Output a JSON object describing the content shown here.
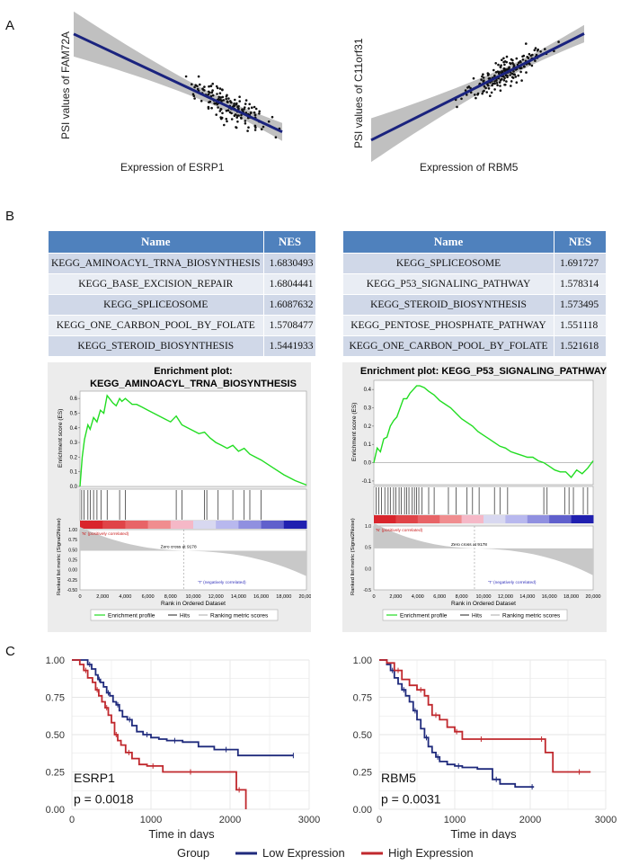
{
  "panel_labels": {
    "a": "A",
    "b": "B",
    "c": "C"
  },
  "scatter_left": {
    "ylabel": "PSI values of FAM72A",
    "xlabel": "Expression of ESRP1",
    "trend": "negative"
  },
  "scatter_right": {
    "ylabel": "PSI values of C11orf31",
    "xlabel": "Expression of RBM5",
    "trend": "positive"
  },
  "table_left": {
    "headers": [
      "Name",
      "NES"
    ],
    "rows": [
      {
        "name": "KEGG_AMINOACYL_TRNA_BIOSYNTHESIS",
        "nes": "1.6830493"
      },
      {
        "name": "KEGG_BASE_EXCISION_REPAIR",
        "nes": "1.6804441"
      },
      {
        "name": "KEGG_SPLICEOSOME",
        "nes": "1.6087632"
      },
      {
        "name": "KEGG_ONE_CARBON_POOL_BY_FOLATE",
        "nes": "1.5708477"
      },
      {
        "name": "KEGG_STEROID_BIOSYNTHESIS",
        "nes": "1.5441933"
      }
    ]
  },
  "table_right": {
    "headers": [
      "Name",
      "NES"
    ],
    "rows": [
      {
        "name": "KEGG_SPLICEOSOME",
        "nes": "1.691727"
      },
      {
        "name": "KEGG_P53_SIGNALING_PATHWAY",
        "nes": "1.578314"
      },
      {
        "name": "KEGG_STEROID_BIOSYNTHESIS",
        "nes": "1.573495"
      },
      {
        "name": "KEGG_PENTOSE_PHOSPHATE_PATHWAY",
        "nes": "1.551118"
      },
      {
        "name": "KEGG_ONE_CARBON_POOL_BY_FOLATE",
        "nes": "1.521618"
      }
    ]
  },
  "gsea_left": {
    "title_line1": "Enrichment plot:",
    "title_line2": "KEGG_AMINOACYL_TRNA_BIOSYNTHESIS",
    "es_ylabel": "Enrichment score (ES)",
    "rank_ylabel": "Ranked list metric (Signal2Noise)",
    "xlabel": "Rank in Ordered Dataset",
    "pos_label": "'N' (positively correlated)",
    "neg_label": "'T' (negatively correlated)",
    "zero_cross": "Zero cross at 9178",
    "legend": [
      "Enrichment profile",
      "Hits",
      "Ranking metric scores"
    ],
    "es_ticks": [
      "0.6",
      "0.5",
      "0.4",
      "0.3",
      "0.2",
      "0.1",
      "0.0"
    ],
    "rank_ticks": [
      "1.00",
      "0.75",
      "0.50",
      "0.25",
      "0.00",
      "-0.25",
      "-0.50"
    ],
    "x_ticks": [
      "0",
      "2,000",
      "4,000",
      "6,000",
      "8,000",
      "10,000",
      "12,000",
      "14,000",
      "16,000",
      "18,000",
      "20,000"
    ]
  },
  "gsea_right": {
    "title": "Enrichment plot: KEGG_P53_SIGNALING_PATHWAY",
    "es_ylabel": "Enrichment score (ES)",
    "rank_ylabel": "Ranked list metric (Signal2Noise)",
    "xlabel": "Rank in Ordered Dataset",
    "pos_label": "'N' (positively correlated)",
    "neg_label": "'T' (negatively correlated)",
    "zero_cross": "Zero cross at 9178",
    "legend": [
      "Enrichment profile",
      "Hits",
      "Ranking metric scores"
    ],
    "es_ticks": [
      "0.4",
      "0.3",
      "0.2",
      "0.1",
      "0.0",
      "-0.1"
    ],
    "rank_ticks": [
      "1.0",
      "0.5",
      "0.0",
      "-0.5"
    ],
    "x_ticks": [
      "0",
      "2,000",
      "4,000",
      "6,000",
      "8,000",
      "10,000",
      "12,000",
      "14,000",
      "16,000",
      "18,000",
      "20,000"
    ]
  },
  "chart_data": [
    {
      "type": "scatter",
      "title": "",
      "xlabel": "Expression of ESRP1",
      "ylabel": "PSI values of FAM72A",
      "note": "Negative linear fit with confidence band; axis ticks not shown",
      "fit": {
        "x": [
          0,
          1
        ],
        "y": [
          0.88,
          0.22
        ]
      }
    },
    {
      "type": "scatter",
      "title": "",
      "xlabel": "Expression of RBM5",
      "ylabel": "PSI values of C11orf31",
      "note": "Positive linear fit with confidence band; axis ticks not shown",
      "fit": {
        "x": [
          0,
          1
        ],
        "y": [
          0.12,
          0.86
        ]
      }
    },
    {
      "type": "line",
      "title": "Enrichment plot: KEGG_AMINOACYL_TRNA_BIOSYNTHESIS",
      "xlabel": "Rank in Ordered Dataset",
      "ylabel": "Enrichment score (ES)",
      "xlim": [
        0,
        20000
      ],
      "ylim": [
        0,
        0.65
      ],
      "x": [
        0,
        200,
        400,
        700,
        900,
        1200,
        1500,
        1800,
        2100,
        2400,
        2600,
        2900,
        3200,
        3500,
        3700,
        4000,
        4300,
        4600,
        5000,
        5500,
        6000,
        6500,
        7000,
        7500,
        8000,
        8500,
        9000,
        9500,
        10000,
        10500,
        11000,
        11500,
        12000,
        12500,
        13000,
        13500,
        14000,
        14500,
        15000,
        15500,
        16000,
        17000,
        18000,
        19000,
        20000
      ],
      "y": [
        0.0,
        0.2,
        0.32,
        0.42,
        0.39,
        0.47,
        0.44,
        0.52,
        0.5,
        0.62,
        0.6,
        0.57,
        0.55,
        0.6,
        0.58,
        0.6,
        0.58,
        0.56,
        0.56,
        0.54,
        0.52,
        0.5,
        0.48,
        0.46,
        0.44,
        0.48,
        0.42,
        0.4,
        0.38,
        0.36,
        0.37,
        0.33,
        0.3,
        0.28,
        0.26,
        0.28,
        0.24,
        0.26,
        0.22,
        0.2,
        0.18,
        0.13,
        0.08,
        0.04,
        0.01
      ],
      "hits": [
        150,
        350,
        700,
        900,
        1200,
        1500,
        1850,
        2400,
        3500,
        4000,
        8500,
        9000,
        11000,
        11200,
        12200,
        13500,
        14500,
        15000,
        16000
      ],
      "zero_cross": 9178
    },
    {
      "type": "line",
      "title": "Enrichment plot: KEGG_P53_SIGNALING_PATHWAY",
      "xlabel": "Rank in Ordered Dataset",
      "ylabel": "Enrichment score (ES)",
      "xlim": [
        0,
        20000
      ],
      "ylim": [
        -0.12,
        0.45
      ],
      "x": [
        0,
        300,
        600,
        900,
        1200,
        1500,
        1800,
        2100,
        2400,
        2700,
        3000,
        3300,
        3600,
        3900,
        4200,
        4600,
        5000,
        5500,
        6000,
        6500,
        7000,
        7500,
        8000,
        8500,
        9000,
        9500,
        10000,
        10500,
        11000,
        11500,
        12000,
        12500,
        13000,
        13500,
        14000,
        14500,
        15000,
        15500,
        16000,
        16500,
        17000,
        17500,
        18000,
        18500,
        19000,
        19500,
        20000
      ],
      "y": [
        0.0,
        0.08,
        0.06,
        0.13,
        0.14,
        0.2,
        0.23,
        0.25,
        0.3,
        0.35,
        0.35,
        0.38,
        0.4,
        0.42,
        0.42,
        0.41,
        0.39,
        0.37,
        0.34,
        0.32,
        0.3,
        0.27,
        0.24,
        0.22,
        0.2,
        0.17,
        0.15,
        0.13,
        0.11,
        0.09,
        0.08,
        0.06,
        0.05,
        0.04,
        0.03,
        0.03,
        0.01,
        0.0,
        -0.02,
        -0.04,
        -0.05,
        -0.05,
        -0.08,
        -0.04,
        -0.06,
        -0.03,
        0.01
      ],
      "hits": [
        200,
        450,
        700,
        1000,
        1300,
        1500,
        1800,
        2000,
        2300,
        2500,
        2800,
        3000,
        3200,
        3500,
        3700,
        3900,
        4100,
        4400,
        5000,
        5500,
        6800,
        7500,
        8500,
        9000,
        9600,
        11000,
        11500,
        12200,
        15500,
        15800,
        17400,
        17800,
        18200,
        19100,
        19500
      ],
      "zero_cross": 9178
    },
    {
      "type": "line",
      "title": "ESRP1",
      "annotation": "p = 0.0018",
      "xlabel": "Time in days",
      "ylabel": "",
      "xlim": [
        0,
        3000
      ],
      "ylim": [
        0,
        1
      ],
      "x_ticks": [
        "0",
        "1000",
        "2000",
        "3000"
      ],
      "y_ticks": [
        "0.00",
        "0.25",
        "0.50",
        "0.75",
        "1.00"
      ],
      "series": [
        {
          "name": "Low Expression",
          "color": "#1f2a7c",
          "x": [
            0,
            150,
            200,
            250,
            300,
            330,
            360,
            400,
            440,
            480,
            520,
            560,
            600,
            640,
            700,
            760,
            820,
            900,
            1000,
            1100,
            1200,
            1400,
            1600,
            1800,
            2100,
            2400,
            2800
          ],
          "y": [
            1.0,
            1.0,
            0.97,
            0.94,
            0.9,
            0.87,
            0.85,
            0.82,
            0.78,
            0.76,
            0.72,
            0.7,
            0.66,
            0.62,
            0.6,
            0.56,
            0.52,
            0.5,
            0.48,
            0.47,
            0.46,
            0.45,
            0.42,
            0.4,
            0.36,
            0.36,
            0.36
          ]
        },
        {
          "name": "High Expression",
          "color": "#c0282d",
          "x": [
            0,
            100,
            150,
            200,
            260,
            300,
            340,
            380,
            420,
            460,
            500,
            540,
            580,
            620,
            680,
            760,
            850,
            950,
            1100,
            1150,
            1300,
            1700,
            2000,
            2080,
            2150,
            2200
          ],
          "y": [
            1.0,
            0.97,
            0.93,
            0.88,
            0.85,
            0.8,
            0.76,
            0.72,
            0.68,
            0.63,
            0.58,
            0.5,
            0.46,
            0.43,
            0.38,
            0.34,
            0.3,
            0.29,
            0.29,
            0.25,
            0.25,
            0.25,
            0.25,
            0.13,
            0.13,
            0.0
          ]
        }
      ]
    },
    {
      "type": "line",
      "title": "RBM5",
      "annotation": "p = 0.0031",
      "xlabel": "Time in days",
      "ylabel": "",
      "xlim": [
        0,
        3000
      ],
      "ylim": [
        0,
        1
      ],
      "x_ticks": [
        "0",
        "1000",
        "2000",
        "3000"
      ],
      "y_ticks": [
        "0.00",
        "0.25",
        "0.50",
        "0.75",
        "1.00"
      ],
      "series": [
        {
          "name": "Low Expression",
          "color": "#1f2a7c",
          "x": [
            0,
            100,
            150,
            200,
            250,
            300,
            350,
            400,
            450,
            500,
            550,
            600,
            650,
            700,
            750,
            800,
            900,
            1000,
            1100,
            1300,
            1500,
            1600,
            1800,
            2000,
            2050
          ],
          "y": [
            1.0,
            0.97,
            0.93,
            0.88,
            0.84,
            0.8,
            0.76,
            0.72,
            0.66,
            0.6,
            0.54,
            0.48,
            0.42,
            0.38,
            0.35,
            0.32,
            0.3,
            0.29,
            0.28,
            0.27,
            0.2,
            0.17,
            0.15,
            0.15,
            0.15
          ]
        },
        {
          "name": "High Expression",
          "color": "#c0282d",
          "x": [
            0,
            100,
            200,
            300,
            400,
            500,
            600,
            650,
            700,
            800,
            900,
            1000,
            1050,
            1100,
            1200,
            1500,
            1800,
            2100,
            2200,
            2300,
            2500,
            2800
          ],
          "y": [
            1.0,
            0.98,
            0.93,
            0.87,
            0.83,
            0.8,
            0.76,
            0.7,
            0.63,
            0.6,
            0.55,
            0.52,
            0.52,
            0.47,
            0.47,
            0.47,
            0.47,
            0.47,
            0.38,
            0.25,
            0.25,
            0.25
          ]
        }
      ]
    }
  ],
  "km_legend": {
    "title": "Group",
    "low": "Low Expression",
    "high": "High Expression"
  }
}
